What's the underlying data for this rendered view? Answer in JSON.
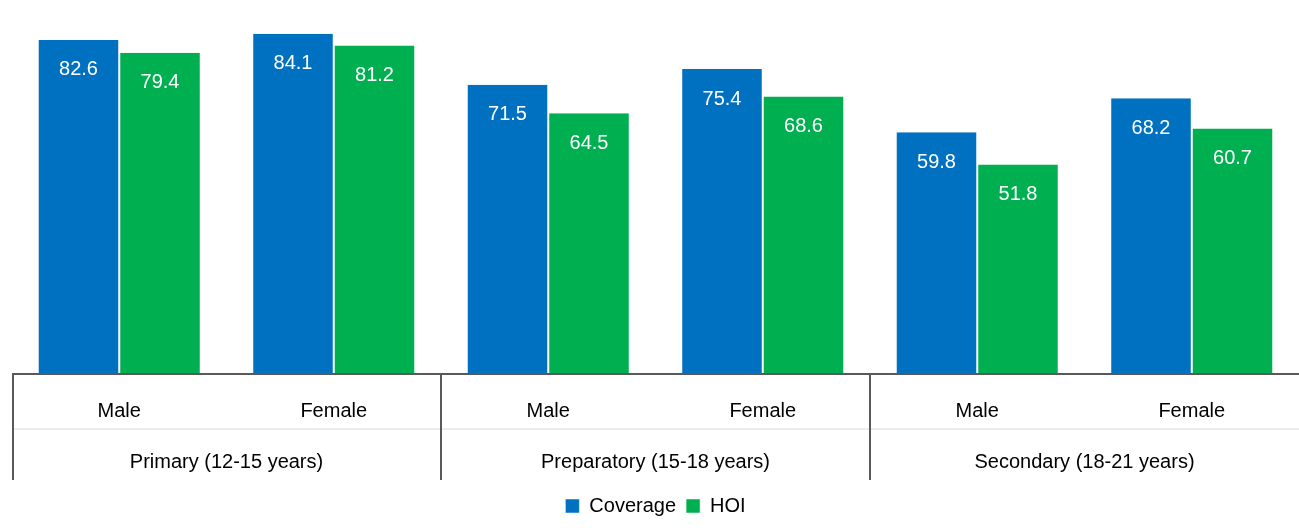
{
  "chart_data": {
    "type": "bar",
    "categories": [
      "Male",
      "Female",
      "Male",
      "Female",
      "Male",
      "Female"
    ],
    "series": [
      {
        "name": "Coverage",
        "color": "#0070c0",
        "values": [
          82.6,
          84.1,
          71.5,
          75.4,
          59.8,
          68.2
        ]
      },
      {
        "name": "HOI",
        "color": "#00b050",
        "values": [
          79.4,
          81.2,
          64.5,
          68.6,
          51.8,
          60.7
        ]
      }
    ],
    "annotations": [
      "Primary (12-15 years)",
      "Preparatory (15-18 years)",
      "Secondary (18-21 years)"
    ],
    "tick_labels": "x",
    "data_labels": true,
    "grid": false,
    "legend": "bottom"
  }
}
